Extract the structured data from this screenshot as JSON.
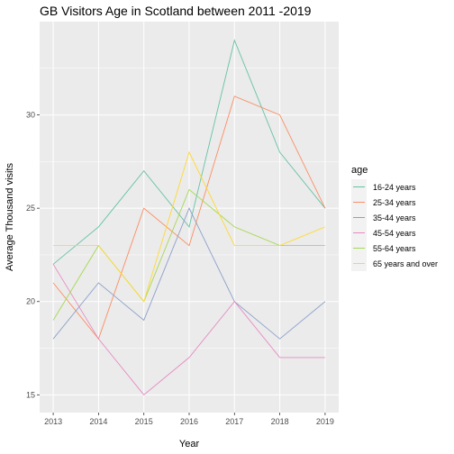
{
  "chart_data": {
    "type": "line",
    "title": "GB Visitors Age in Scotland between 2011 -2019",
    "xlabel": "Year",
    "ylabel": "Average Thousand visits",
    "x": [
      2013,
      2014,
      2015,
      2016,
      2017,
      2018,
      2019
    ],
    "xlim": [
      2012.7,
      2019.3
    ],
    "ylim": [
      14.05,
      35.0
    ],
    "yticks": [
      15,
      20,
      25,
      30
    ],
    "grid": true,
    "legend_title": "age",
    "legend_position": "right",
    "series": [
      {
        "name": "16-24 years",
        "color": "#66c2a5",
        "values": [
          22,
          24,
          27,
          24,
          34,
          28,
          25
        ]
      },
      {
        "name": "25-34 years",
        "color": "#fc8d62",
        "values": [
          21,
          18,
          25,
          23,
          31,
          30,
          25
        ]
      },
      {
        "name": "35-44 years",
        "color": "#8da0cb",
        "values": [
          18,
          21,
          19,
          25,
          20,
          18,
          20
        ]
      },
      {
        "name": "45-54 years",
        "color": "#e78ac3",
        "values": [
          22,
          18,
          15,
          17,
          20,
          17,
          17
        ]
      },
      {
        "name": "55-64 years",
        "color": "#a6d854",
        "values": [
          19,
          23,
          20,
          26,
          24,
          23,
          23
        ]
      },
      {
        "name": "65 years and over",
        "color": "#ffd92f",
        "values": [
          23,
          23,
          20,
          28,
          23,
          23,
          24
        ]
      }
    ]
  }
}
